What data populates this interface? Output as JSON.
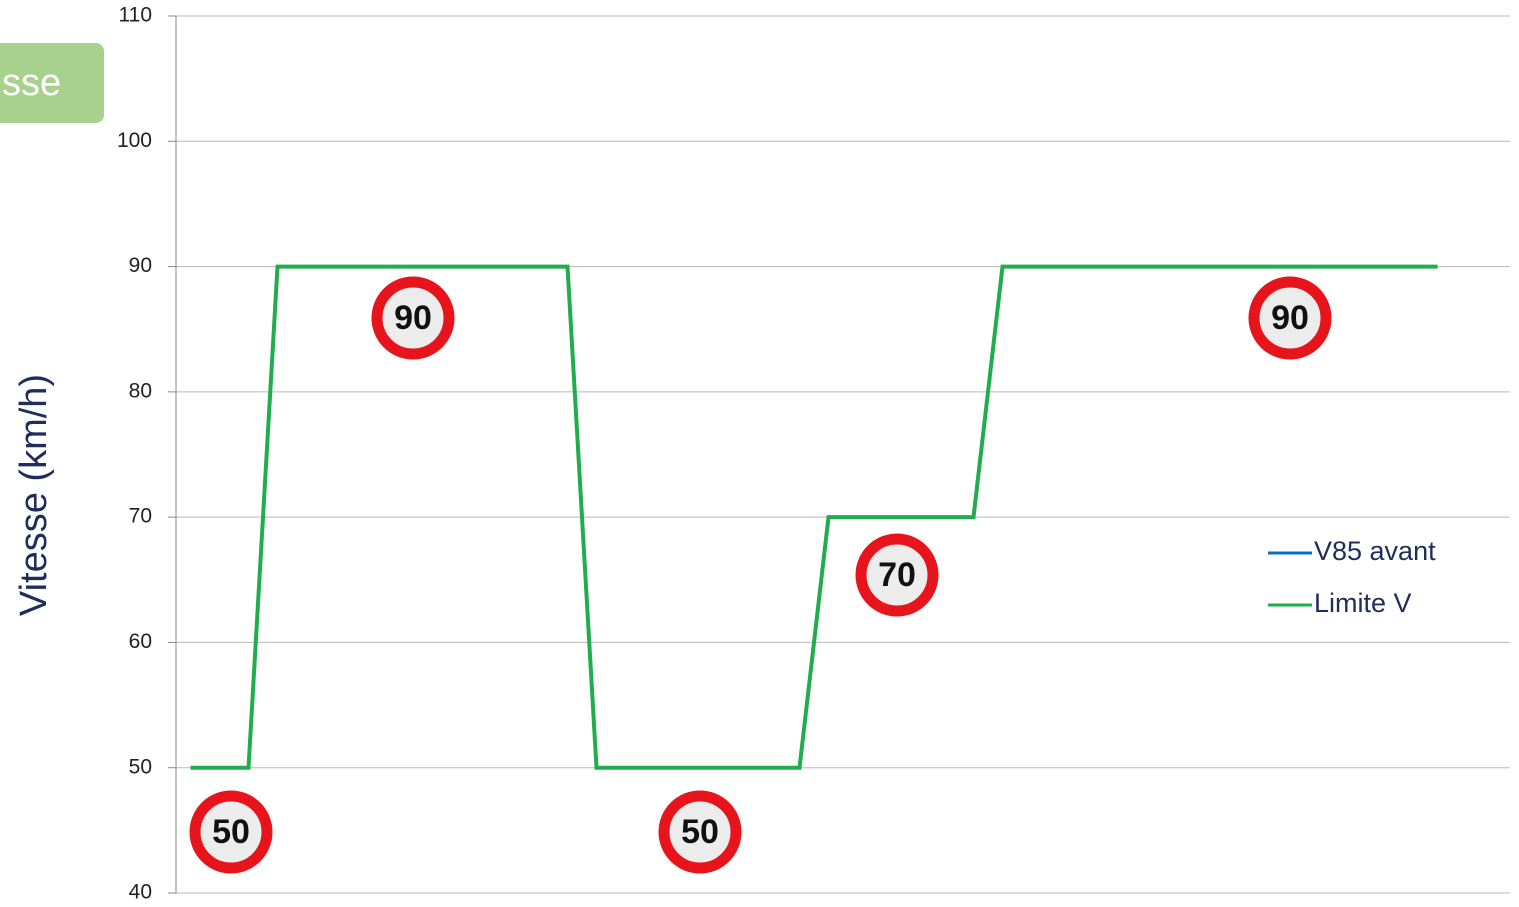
{
  "slide_label": "sse",
  "chart_data": {
    "type": "line",
    "y_axis_label": "Vitesse (km/h)",
    "categories": [
      null,
      null,
      null,
      null,
      null,
      null,
      null,
      null,
      null,
      null,
      null,
      null,
      null,
      null,
      null,
      null,
      null,
      null,
      null,
      null,
      null,
      null,
      null,
      null,
      null,
      null,
      null,
      null,
      null,
      null,
      null,
      null,
      null,
      null,
      null,
      null,
      null,
      null,
      null,
      null,
      null,
      null,
      null,
      null,
      null,
      null
    ],
    "series": [
      {
        "name": "V85 avant",
        "color": "#0070c0",
        "values": [
          null,
          null,
          null,
          null,
          null,
          null,
          null,
          null,
          null,
          null,
          null,
          null,
          null,
          null,
          null,
          null,
          null,
          null,
          null,
          null,
          null,
          null,
          null,
          null,
          null,
          null,
          null,
          null,
          null,
          null,
          null,
          null,
          null,
          null,
          null,
          null,
          null,
          null,
          null,
          null,
          null,
          null,
          null,
          null,
          null,
          null
        ]
      },
      {
        "name": "Limite V",
        "color": "#1fae4b",
        "values": [
          50,
          50,
          50,
          90,
          90,
          90,
          90,
          90,
          90,
          90,
          90,
          90,
          90,
          90,
          50,
          50,
          50,
          50,
          50,
          50,
          50,
          50,
          70,
          70,
          70,
          70,
          70,
          70,
          90,
          90,
          90,
          90,
          90,
          90,
          90,
          90,
          90,
          90,
          90,
          90,
          90,
          90,
          90,
          90,
          null,
          null
        ]
      }
    ],
    "annotations": [
      "90",
      "90",
      "70",
      "50",
      "50"
    ],
    "ylim": [
      40,
      110
    ],
    "yticks": [
      40,
      50,
      60,
      70,
      80,
      90,
      100,
      110
    ],
    "grid": true,
    "legend": "right"
  }
}
